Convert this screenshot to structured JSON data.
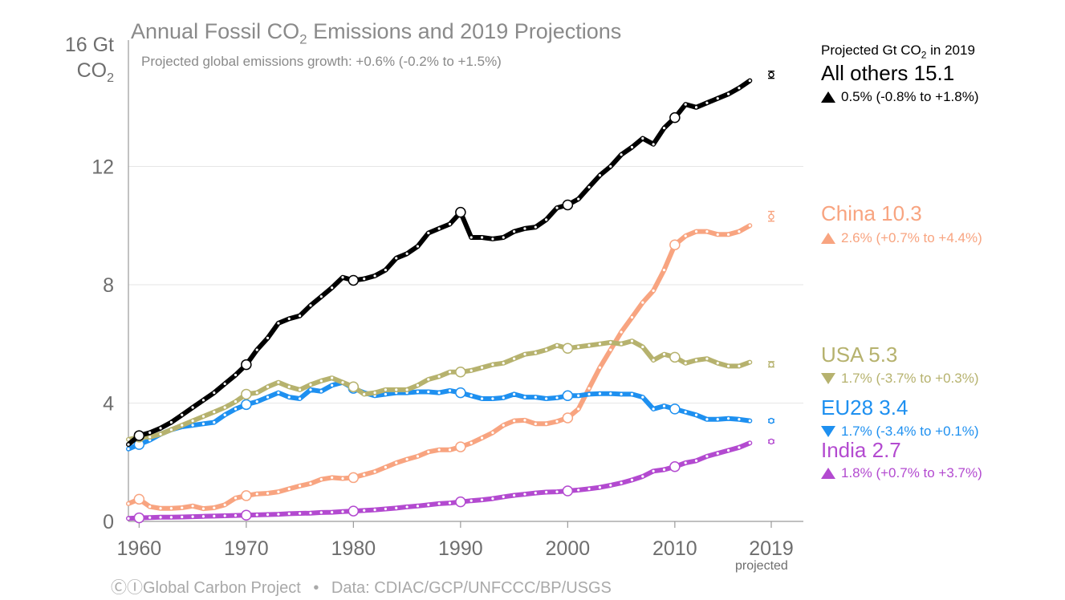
{
  "chart_data": {
    "type": "line",
    "title_main": "Annual Fossil CO",
    "title_sub": "2",
    "title_rest": " Emissions and 2019 Projections",
    "subtitle": "Projected global emissions growth: +0.6% (-0.2% to +1.5%)",
    "ylabel_line1": "16 Gt",
    "ylabel_line2_main": "CO",
    "ylabel_line2_sub": "2",
    "ylim": [
      0,
      16
    ],
    "xlim": [
      1959,
      2019
    ],
    "y_ticks": [
      "0",
      "4",
      "8",
      "12"
    ],
    "x_ticks": [
      "1960",
      "1970",
      "1980",
      "1990",
      "2000",
      "2010",
      "2019"
    ],
    "projected_label": "projected",
    "grid": true,
    "legend_header_main": "Projected Gt CO",
    "legend_header_sub": "2",
    "legend_header_rest": " in 2019",
    "series": [
      {
        "name": "All others",
        "color": "#000000",
        "projection_2019": 15.1,
        "proj_error": [
          14.98,
          15.22
        ],
        "legend_label": "All others 15.1",
        "growth_text": "0.5% (-0.8% to +1.8%)",
        "direction": "up",
        "values": [
          2.6,
          2.9,
          3.0,
          3.15,
          3.35,
          3.6,
          3.85,
          4.1,
          4.35,
          4.65,
          4.95,
          5.3,
          5.8,
          6.2,
          6.7,
          6.85,
          6.95,
          7.3,
          7.6,
          7.9,
          8.25,
          8.15,
          8.2,
          8.3,
          8.5,
          8.9,
          9.05,
          9.3,
          9.75,
          9.9,
          10.05,
          10.45,
          9.6,
          9.6,
          9.55,
          9.6,
          9.8,
          9.9,
          9.95,
          10.2,
          10.6,
          10.7,
          10.9,
          11.3,
          11.7,
          12.0,
          12.4,
          12.65,
          12.95,
          12.75,
          13.3,
          13.65,
          14.1,
          14.0,
          14.15,
          14.3,
          14.45,
          14.65,
          14.9
        ]
      },
      {
        "name": "China",
        "color": "#f8a480",
        "projection_2019": 10.3,
        "proj_error": [
          10.15,
          10.48
        ],
        "legend_label": "China 10.3",
        "growth_text": "2.6% (+0.7% to +4.4%)",
        "direction": "up",
        "values": [
          0.6,
          0.75,
          0.5,
          0.44,
          0.44,
          0.46,
          0.52,
          0.43,
          0.46,
          0.56,
          0.79,
          0.87,
          0.93,
          0.95,
          1.0,
          1.1,
          1.2,
          1.28,
          1.42,
          1.48,
          1.45,
          1.48,
          1.58,
          1.68,
          1.83,
          1.98,
          2.1,
          2.2,
          2.35,
          2.42,
          2.42,
          2.52,
          2.65,
          2.82,
          3.0,
          3.25,
          3.4,
          3.42,
          3.3,
          3.3,
          3.38,
          3.5,
          3.8,
          4.5,
          5.2,
          5.8,
          6.4,
          6.9,
          7.4,
          7.8,
          8.5,
          9.35,
          9.65,
          9.8,
          9.8,
          9.7,
          9.7,
          9.8,
          10.0
        ]
      },
      {
        "name": "USA",
        "color": "#b6b26e",
        "projection_2019": 5.3,
        "proj_error": [
          5.22,
          5.4
        ],
        "legend_label": "USA 5.3",
        "growth_text": "1.7% (-3.7% to +0.3%)",
        "direction": "down",
        "values": [
          2.77,
          2.85,
          2.85,
          2.95,
          3.1,
          3.25,
          3.4,
          3.55,
          3.7,
          3.85,
          4.05,
          4.3,
          4.35,
          4.55,
          4.7,
          4.55,
          4.45,
          4.62,
          4.75,
          4.85,
          4.7,
          4.55,
          4.3,
          4.35,
          4.45,
          4.45,
          4.45,
          4.6,
          4.8,
          4.9,
          5.05,
          5.05,
          5.1,
          5.2,
          5.3,
          5.35,
          5.5,
          5.65,
          5.7,
          5.8,
          5.95,
          5.85,
          5.9,
          5.95,
          6.0,
          6.05,
          6.0,
          6.1,
          5.9,
          5.45,
          5.65,
          5.55,
          5.35,
          5.45,
          5.5,
          5.35,
          5.25,
          5.25,
          5.38
        ]
      },
      {
        "name": "EU28",
        "color": "#1e90f0",
        "projection_2019": 3.4,
        "proj_error": [
          3.35,
          3.45
        ],
        "legend_label": "EU28 3.4",
        "growth_text": "1.7% (-3.4% to +0.1%)",
        "direction": "down",
        "values": [
          2.45,
          2.6,
          2.75,
          2.95,
          3.1,
          3.2,
          3.25,
          3.3,
          3.35,
          3.6,
          3.8,
          3.95,
          4.05,
          4.2,
          4.35,
          4.2,
          4.15,
          4.45,
          4.4,
          4.6,
          4.7,
          4.5,
          4.35,
          4.25,
          4.3,
          4.35,
          4.35,
          4.38,
          4.38,
          4.35,
          4.42,
          4.35,
          4.25,
          4.15,
          4.15,
          4.18,
          4.3,
          4.2,
          4.2,
          4.15,
          4.18,
          4.25,
          4.25,
          4.3,
          4.32,
          4.32,
          4.3,
          4.3,
          4.2,
          3.8,
          3.9,
          3.8,
          3.7,
          3.6,
          3.45,
          3.45,
          3.48,
          3.45,
          3.4
        ]
      },
      {
        "name": "India",
        "color": "#b34ad0",
        "projection_2019": 2.7,
        "proj_error": [
          2.65,
          2.75
        ],
        "legend_label": "India 2.7",
        "growth_text": "1.8% (+0.7% to +3.7%)",
        "direction": "up",
        "values": [
          0.1,
          0.12,
          0.13,
          0.14,
          0.14,
          0.15,
          0.16,
          0.17,
          0.18,
          0.19,
          0.2,
          0.21,
          0.22,
          0.23,
          0.24,
          0.26,
          0.27,
          0.28,
          0.3,
          0.31,
          0.33,
          0.35,
          0.37,
          0.39,
          0.42,
          0.45,
          0.49,
          0.52,
          0.56,
          0.6,
          0.62,
          0.66,
          0.7,
          0.73,
          0.77,
          0.83,
          0.88,
          0.92,
          0.96,
          0.99,
          1.0,
          1.03,
          1.06,
          1.1,
          1.15,
          1.22,
          1.3,
          1.4,
          1.52,
          1.7,
          1.75,
          1.85,
          1.98,
          2.05,
          2.2,
          2.3,
          2.4,
          2.5,
          2.65
        ]
      }
    ]
  },
  "footer": {
    "cc_icons": "ⒸⒾ",
    "org": "Global Carbon Project",
    "separator": "•",
    "data_source": "Data: CDIAC/GCP/UNFCCC/BP/USGS"
  }
}
